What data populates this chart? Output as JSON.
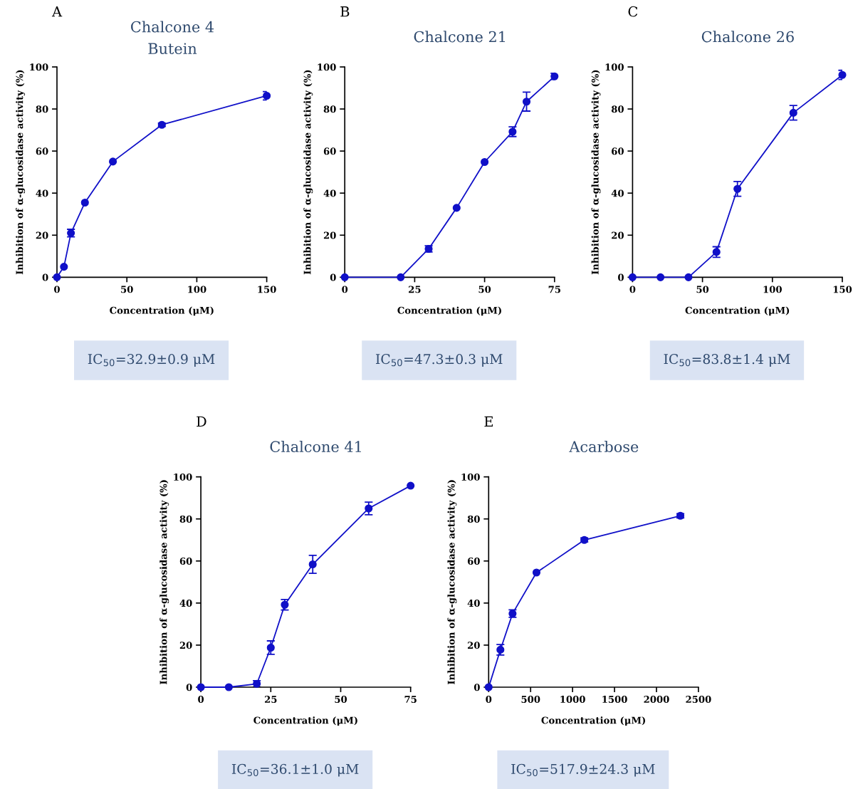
{
  "chart_data": [
    {
      "type": "line",
      "title": "Chalcone 4",
      "subtitle": "Butein",
      "xlabel": "Concentration (μM)",
      "ylabel": "Inhibition of α-glucosidase activity (%)",
      "annotations": [
        "A",
        "IC$_{50}$=32.9±0.9 μM"
      ],
      "x": [
        0,
        5,
        10,
        20,
        40,
        75,
        150
      ],
      "values": [
        0,
        5,
        21,
        35.5,
        55,
        72.5,
        86.3
      ],
      "errors": [
        null,
        null,
        1.8,
        null,
        null,
        0.8,
        2
      ],
      "color": "#1010c8",
      "marker": "circle",
      "xlim": [
        0,
        150
      ],
      "ylim": [
        0,
        100
      ],
      "xticks": [
        0,
        50,
        100,
        150
      ],
      "yticks": [
        0,
        20,
        40,
        60,
        80,
        100
      ]
    },
    {
      "type": "line",
      "title": "Chalcone 21",
      "xlabel": "Concentration (μM)",
      "ylabel": "Inhibition of α-glucosidase activity (%)",
      "annotations": [
        "B",
        "IC$_{50}$=47.3±0.3 μM"
      ],
      "x": [
        0,
        20,
        30,
        40,
        50,
        60,
        65,
        75
      ],
      "values": [
        0,
        0,
        13.5,
        33,
        54.8,
        69.2,
        83.5,
        95.5
      ],
      "errors": [
        null,
        null,
        1.5,
        null,
        null,
        2.3,
        4.5,
        1.5
      ],
      "color": "#1010c8",
      "marker": "circle",
      "xlim": [
        0,
        75
      ],
      "ylim": [
        0,
        100
      ],
      "xticks": [
        0,
        25,
        50,
        75
      ],
      "yticks": [
        0,
        20,
        40,
        60,
        80,
        100
      ]
    },
    {
      "type": "line",
      "title": "Chalcone 26",
      "xlabel": "Concentration (μM)",
      "ylabel": "Inhibition of α-glucosidase activity (%)",
      "annotations": [
        "C",
        "IC$_{50}$=83.8±1.4 μM"
      ],
      "x": [
        0,
        20,
        40,
        60,
        75,
        115,
        150
      ],
      "values": [
        0,
        0,
        0,
        12,
        42,
        78.2,
        96.2
      ],
      "errors": [
        null,
        null,
        null,
        2.5,
        3.5,
        3.5,
        2.2
      ],
      "color": "#1010c8",
      "marker": "circle",
      "xlim": [
        0,
        150
      ],
      "ylim": [
        0,
        100
      ],
      "xticks": [
        0,
        50,
        100,
        150
      ],
      "yticks": [
        0,
        20,
        40,
        60,
        80,
        100
      ]
    },
    {
      "type": "line",
      "title": "Chalcone 41",
      "xlabel": "Concentration (μM)",
      "ylabel": "Inhibition of α-glucosidase activity (%)",
      "annotations": [
        "D",
        "IC$_{50}$=36.1±1.0 μM"
      ],
      "x": [
        0,
        10,
        20,
        25,
        30,
        40,
        60,
        75
      ],
      "values": [
        0,
        0,
        1.6,
        18.8,
        39.2,
        58.4,
        85,
        95.8
      ],
      "errors": [
        null,
        null,
        1.5,
        3.2,
        2.5,
        4.3,
        3,
        null
      ],
      "color": "#1010c8",
      "marker": "circle",
      "xlim": [
        0,
        75
      ],
      "ylim": [
        0,
        100
      ],
      "xticks": [
        0,
        25,
        50,
        75
      ],
      "yticks": [
        0,
        20,
        40,
        60,
        80,
        100
      ]
    },
    {
      "type": "line",
      "title": "Acarbose",
      "xlabel": "Concentration (μM)",
      "ylabel": "Inhibition of α-glucosidase activity (%)",
      "annotations": [
        "E",
        "IC$_{50}$=517.9±24.3 μM"
      ],
      "x": [
        0,
        140,
        285,
        570,
        1140,
        2285
      ],
      "values": [
        0,
        17.8,
        35,
        54.5,
        70,
        81.5
      ],
      "errors": [
        null,
        2.5,
        1.8,
        null,
        1,
        1
      ],
      "color": "#1010c8",
      "marker": "circle",
      "xlim": [
        0,
        2500
      ],
      "ylim": [
        0,
        100
      ],
      "xticks": [
        0,
        500,
        1000,
        1500,
        2000,
        2500
      ],
      "yticks": [
        0,
        20,
        40,
        60,
        80,
        100
      ]
    }
  ]
}
